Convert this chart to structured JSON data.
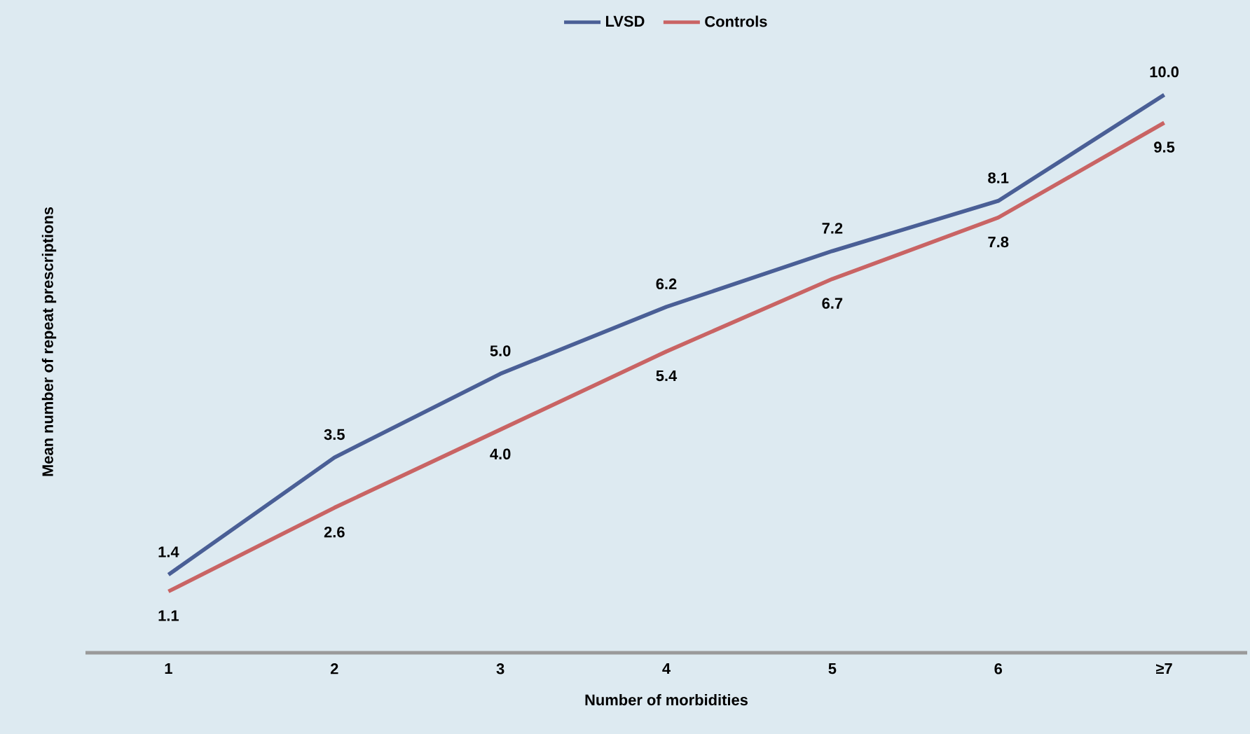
{
  "chart_data": {
    "type": "line",
    "xlabel": "Number of morbidities",
    "ylabel": "Mean number of repeat prescriptions",
    "categories": [
      "1",
      "2",
      "3",
      "4",
      "5",
      "6",
      "≥7"
    ],
    "series": [
      {
        "name": "LVSD",
        "color": "#4a5f96",
        "values": [
          1.4,
          3.5,
          5.0,
          6.2,
          7.2,
          8.1,
          10.0
        ],
        "value_labels": [
          "1.4",
          "3.5",
          "5.0",
          "6.2",
          "7.2",
          "8.1",
          "10.0"
        ]
      },
      {
        "name": "Controls",
        "color": "#c96464",
        "values": [
          1.1,
          2.6,
          4.0,
          5.4,
          6.7,
          7.8,
          9.5
        ],
        "value_labels": [
          "1.1",
          "2.6",
          "4.0",
          "5.4",
          "6.7",
          "7.8",
          "9.5"
        ]
      }
    ],
    "legend": "top"
  }
}
